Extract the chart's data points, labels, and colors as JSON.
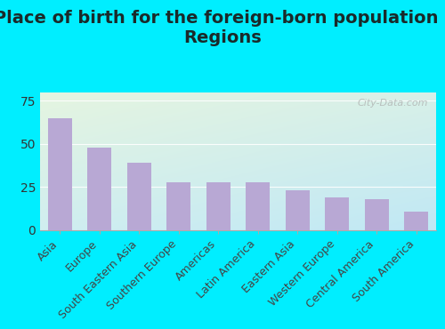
{
  "title": "Place of birth for the foreign-born population -\nRegions",
  "categories": [
    "Asia",
    "Europe",
    "South Eastern Asia",
    "Southern Europe",
    "Americas",
    "Latin America",
    "Eastern Asia",
    "Western Europe",
    "Central America",
    "South America"
  ],
  "values": [
    65,
    48,
    39,
    28,
    28,
    28,
    23,
    19,
    18,
    11
  ],
  "bar_color": "#b8a8d4",
  "background_outer": "#00eeff",
  "bg_top_left": "#e5f5e0",
  "bg_bottom_right": "#c8eef5",
  "yticks": [
    0,
    25,
    50,
    75
  ],
  "ylim": [
    0,
    80
  ],
  "title_fontsize": 14,
  "tick_fontsize": 9,
  "watermark": "City-Data.com",
  "title_color": "#1a2a2a"
}
